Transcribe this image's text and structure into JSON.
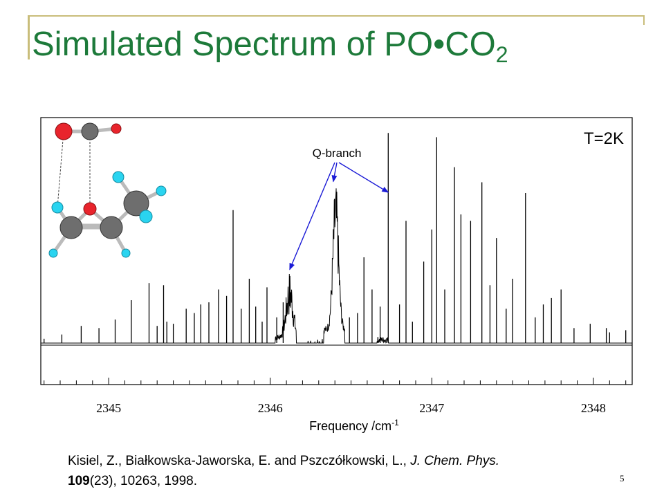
{
  "slide": {
    "title_main": "Simulated Spectrum of PO•CO",
    "title_sub": "2",
    "page_number": "5"
  },
  "citation": {
    "authors": "Kisiel, Z., Białkowska-Jaworska, E. and Pszczółkowski, L., ",
    "journal": "J. Chem. Phys.",
    "volume": "109",
    "rest": "(23), 10263, 1998."
  },
  "chart_data": {
    "type": "line",
    "xlabel": "Frequency /cm",
    "xlabel_sup": "-1",
    "ylabel": "",
    "xlim": [
      2344.58,
      2348.24
    ],
    "ylim": [
      0,
      1.0
    ],
    "xticks": [
      2345,
      2346,
      2347,
      2348
    ],
    "xtick_labels": [
      "2345",
      "2346",
      "2347",
      "2348"
    ],
    "minor_tick_step": 0.1,
    "grid": false,
    "temperature_label": "T=2K",
    "annotation": {
      "text": "Q-branch",
      "arrow_targets": [
        {
          "x": 2346.12,
          "y": 0.33
        },
        {
          "x": 2346.39,
          "y": 0.74
        },
        {
          "x": 2346.73,
          "y": 0.69
        }
      ]
    },
    "inset": "molecular structure model of the PO•CO2 complex",
    "series": [
      {
        "lines": [
          [
            2344.6,
            0.02
          ],
          [
            2344.71,
            0.04
          ],
          [
            2344.83,
            0.08
          ],
          [
            2344.94,
            0.07
          ],
          [
            2345.04,
            0.11
          ],
          [
            2345.14,
            0.2
          ],
          [
            2345.25,
            0.28
          ],
          [
            2345.3,
            0.08
          ],
          [
            2345.34,
            0.27
          ],
          [
            2345.36,
            0.1
          ],
          [
            2345.4,
            0.09
          ],
          [
            2345.48,
            0.16
          ],
          [
            2345.53,
            0.14
          ],
          [
            2345.57,
            0.18
          ],
          [
            2345.62,
            0.19
          ],
          [
            2345.68,
            0.25
          ],
          [
            2345.73,
            0.22
          ],
          [
            2345.77,
            0.62
          ],
          [
            2345.82,
            0.16
          ],
          [
            2345.87,
            0.3
          ],
          [
            2345.91,
            0.17
          ],
          [
            2345.95,
            0.1
          ],
          [
            2345.98,
            0.26
          ],
          [
            2346.04,
            0.12
          ],
          [
            2346.08,
            0.19
          ],
          [
            2346.49,
            0.12
          ],
          [
            2346.54,
            0.14
          ],
          [
            2346.58,
            0.4
          ],
          [
            2346.63,
            0.25
          ],
          [
            2346.68,
            0.17
          ],
          [
            2346.73,
            0.98
          ],
          [
            2346.8,
            0.18
          ],
          [
            2346.84,
            0.57
          ],
          [
            2346.88,
            0.1
          ],
          [
            2346.95,
            0.38
          ],
          [
            2347.0,
            0.53
          ],
          [
            2347.03,
            0.96
          ],
          [
            2347.08,
            0.25
          ],
          [
            2347.14,
            0.82
          ],
          [
            2347.18,
            0.6
          ],
          [
            2347.24,
            0.57
          ],
          [
            2347.31,
            0.75
          ],
          [
            2347.36,
            0.27
          ],
          [
            2347.4,
            0.49
          ],
          [
            2347.46,
            0.16
          ],
          [
            2347.5,
            0.3
          ],
          [
            2347.58,
            0.7
          ],
          [
            2347.64,
            0.12
          ],
          [
            2347.69,
            0.18
          ],
          [
            2347.74,
            0.21
          ],
          [
            2347.8,
            0.25
          ],
          [
            2347.88,
            0.07
          ],
          [
            2347.98,
            0.09
          ],
          [
            2348.08,
            0.07
          ],
          [
            2348.1,
            0.05
          ],
          [
            2348.2,
            0.06
          ]
        ]
      }
    ]
  }
}
